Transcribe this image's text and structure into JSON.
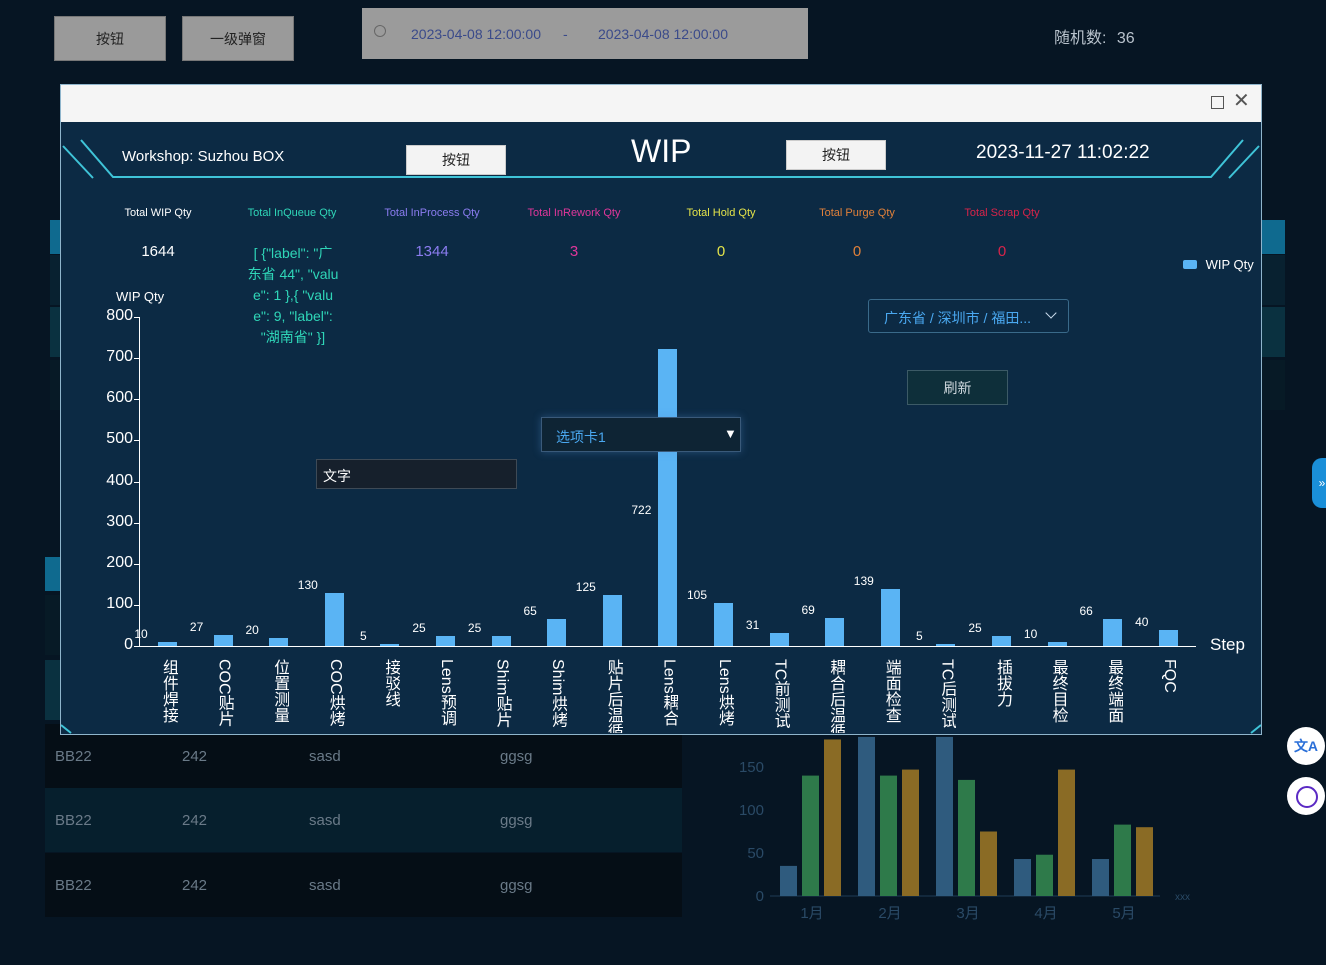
{
  "background": {
    "button1": "按钮",
    "button2": "一级弹窗",
    "date_start": "2023-04-08 12:00:00",
    "date_sep": "-",
    "date_end": "2023-04-08 12:00:00",
    "random_label": "随机数:",
    "random_value": "36",
    "table_rows": [
      [
        "BB22",
        "242",
        "sasd",
        "ggsg"
      ],
      [
        "BB22",
        "242",
        "sasd",
        "ggsg"
      ],
      [
        "BB22",
        "242",
        "sasd",
        "ggsg"
      ]
    ],
    "chart": {
      "type": "bar",
      "categories": [
        "1月",
        "2月",
        "3月",
        "4月",
        "5月"
      ],
      "yticks": [
        "0",
        "50",
        "100",
        "150"
      ],
      "x_unit": "xxx",
      "series": [
        {
          "values": [
            35,
            185,
            185,
            43,
            43
          ],
          "color": "#2f5b7e"
        },
        {
          "values": [
            140,
            140,
            135,
            48,
            83
          ],
          "color": "#2e7a4a"
        },
        {
          "values": [
            182,
            147,
            75,
            147,
            80
          ],
          "color": "#8a6b25"
        }
      ]
    }
  },
  "modal": {
    "workshop_label": "Workshop:",
    "workshop_value": "Suzhou BOX",
    "button_left": "按钮",
    "title": "WIP",
    "button_right": "按钮",
    "datetime": "2023-11-27 11:02:22",
    "stats": [
      {
        "label": "Total WIP Qty",
        "value": "1644",
        "color": "#ffffff"
      },
      {
        "label": "Total InQueue Qty",
        "value": "[ {\"label\": \"广东省 44\", \"value\": 1 },{ \"value\": 9, \"label\": \"湖南省\" }]",
        "color": "#2fd6b8"
      },
      {
        "label": "Total InProcess Qty",
        "value": "1344",
        "color": "#8b7cf0"
      },
      {
        "label": "Total InRework Qty",
        "value": "3",
        "color": "#e0369a"
      },
      {
        "label": "Total Hold Qty",
        "value": "0",
        "color": "#e3e34a"
      },
      {
        "label": "Total Purge Qty",
        "value": "0",
        "color": "#e0803a"
      },
      {
        "label": "Total Scrap Qty",
        "value": "0",
        "color": "#d8244a"
      }
    ],
    "cascader_value": "广东省 / 深圳市 / 福田...",
    "refresh_button": "刷新",
    "select_value": "选项卡1",
    "text_input_value": "文字"
  },
  "chart_data": {
    "type": "bar",
    "ylabel": "WIP Qty",
    "xlabel": "Step",
    "legend": "WIP Qty",
    "legend_position": "top-right",
    "ylim": [
      0,
      800
    ],
    "yticks": [
      0,
      100,
      200,
      300,
      400,
      500,
      600,
      700,
      800
    ],
    "categories": [
      "组件焊接",
      "COC贴片",
      "位置测量",
      "COC烘烤",
      "接驳线",
      "Lens预调",
      "Shim贴片",
      "Shim烘烤",
      "贴片后温循",
      "Lens耦合",
      "Lens烘烤",
      "TC前测试",
      "耦合后温循",
      "端面检查",
      "TC后测试",
      "插拔力",
      "最终目检",
      "最终端面",
      "FQC"
    ],
    "values": [
      10,
      27,
      20,
      130,
      5,
      25,
      25,
      65,
      125,
      722,
      105,
      31,
      69,
      139,
      5,
      25,
      10,
      66,
      40
    ],
    "value_labels": [
      "10",
      "27",
      "20",
      "130",
      "5",
      "25",
      "25",
      "65",
      "125",
      "722",
      "105",
      "31",
      "69",
      "139",
      "5",
      "25",
      "10",
      "66",
      "40"
    ],
    "color": "#5ab4f4"
  }
}
